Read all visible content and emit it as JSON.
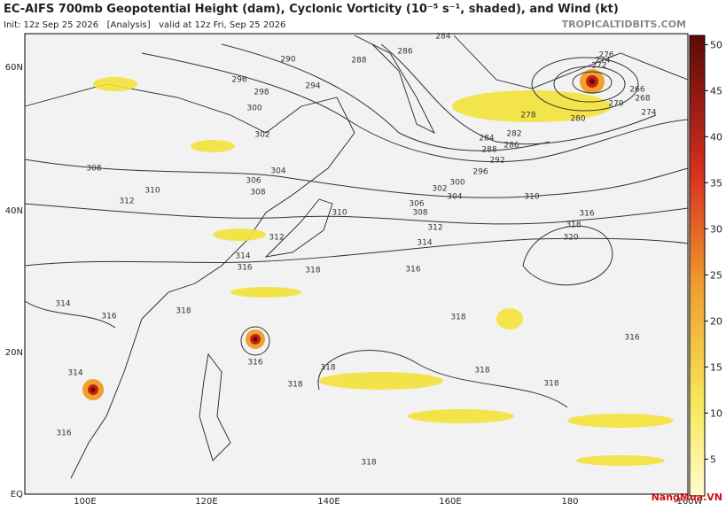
{
  "header": {
    "title": "EC-AIFS 700mb Geopotential Height (dam), Cyclonic Vorticity (10⁻⁵ s⁻¹, shaded), and Wind (kt)",
    "subtitle": "Init: 12z Sep 25 2026   [Analysis]   valid at 12z Fri, Sep 25 2026",
    "brand": "TROPICALTIDBITS.COM"
  },
  "watermark": "NangMua.VN",
  "map": {
    "lat_labels": [
      "60N",
      "40N",
      "20N",
      "EQ"
    ],
    "lon_labels": [
      "100E",
      "120E",
      "140E",
      "160E",
      "180",
      "160W"
    ],
    "contour_labels": [
      "284",
      "290",
      "288",
      "286",
      "296",
      "298",
      "294",
      "300",
      "302",
      "304",
      "306",
      "308",
      "308",
      "310",
      "312",
      "310",
      "312",
      "314",
      "316",
      "318",
      "306",
      "308",
      "312",
      "314",
      "302",
      "304",
      "300",
      "296",
      "292",
      "288",
      "286",
      "284",
      "282",
      "278",
      "280",
      "276",
      "274",
      "272",
      "266",
      "268",
      "270",
      "274",
      "310",
      "316",
      "318",
      "320",
      "316",
      "318",
      "318",
      "318",
      "316",
      "316",
      "318",
      "318",
      "318",
      "314",
      "316",
      "318",
      "314",
      "316"
    ]
  },
  "colorbar": {
    "ticks": [
      5,
      10,
      15,
      20,
      25,
      30,
      35,
      40,
      45,
      50
    ],
    "lim": [
      1,
      51
    ]
  }
}
